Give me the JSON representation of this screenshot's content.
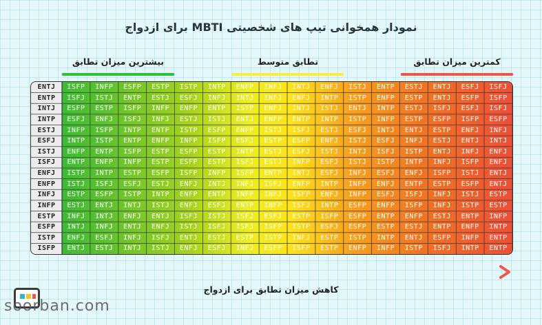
{
  "title": "نمودار همخوانی تیپ های شخصیتی MBTI برای ازدواج",
  "legend": {
    "most": "بیشترین میزان تطابق",
    "average": "تطابق متوسط",
    "least": "کمترین میزان تطابق"
  },
  "arrow_caption": "کاهش میزان تطابق برای ازدواج",
  "watermark": "soorban.com",
  "colors": {
    "high": "#27b53a",
    "mid": "#fde317",
    "low": "#ec4e38",
    "arrow_start": "#2ec036",
    "arrow_end": "#ef5748"
  },
  "chart_data": {
    "type": "table",
    "rows": [
      {
        "type": "ENTJ",
        "matches": [
          "ISFP",
          "INFP",
          "ESFP",
          "ESTP",
          "ISTP",
          "INTP",
          "ENFP",
          "INFJ",
          "INTJ",
          "ENFJ",
          "ISTJ",
          "ENTP",
          "ESTJ",
          "ENTJ",
          "ESFJ",
          "ISFJ"
        ]
      },
      {
        "type": "ENTP",
        "matches": [
          "ISFJ",
          "ISTJ",
          "ENTP",
          "ESTJ",
          "ESFJ",
          "INFJ",
          "INTJ",
          "INFJ",
          "ENFJ",
          "INTP",
          "ISTP",
          "ENFP",
          "ESTP",
          "ENTJ",
          "ESFP",
          "ISFP"
        ]
      },
      {
        "type": "INTJ",
        "matches": [
          "ESFP",
          "ESTP",
          "ISFP",
          "INFP",
          "ENFP",
          "ENTP",
          "ISTP",
          "ENFJ",
          "INTJ",
          "ISTJ",
          "ENTJ",
          "INTP",
          "ESTJ",
          "ISFJ",
          "ESFJ",
          "ISFJ"
        ]
      },
      {
        "type": "INTP",
        "matches": [
          "ESFJ",
          "ENFJ",
          "ISFJ",
          "INFJ",
          "ESTJ",
          "ISTJ",
          "ENTJ",
          "ENFP",
          "ENTP",
          "INTP",
          "ISTP",
          "INFP",
          "ESTP",
          "ESFP",
          "ISFP",
          "ESFP"
        ]
      },
      {
        "type": "ESTJ",
        "matches": [
          "INFP",
          "ISFP",
          "INTP",
          "ENTP",
          "ISTP",
          "ESFP",
          "ENFP",
          "ISTJ",
          "ISFJ",
          "ESTJ",
          "ESFJ",
          "INTJ",
          "ENTJ",
          "ESTP",
          "ENFJ",
          "INFJ"
        ]
      },
      {
        "type": "ESFJ",
        "matches": [
          "INTP",
          "ISTP",
          "ENTP",
          "ENFP",
          "INFP",
          "ISFP",
          "ESFJ",
          "ESTP",
          "ESFP",
          "ENFJ",
          "ISTJ",
          "ESFJ",
          "INFJ",
          "ESTJ",
          "ENTJ",
          "INTJ"
        ]
      },
      {
        "type": "ISTJ",
        "matches": [
          "ENFP",
          "ENTP",
          "ISFP",
          "ESTP",
          "ESFP",
          "ESTP",
          "INTP",
          "ESTJ",
          "ESFJ",
          "ISTJ",
          "INTJ",
          "ISFJ",
          "ISTP",
          "ENTJ",
          "INFJ",
          "ENFJ"
        ]
      },
      {
        "type": "ISFJ",
        "matches": [
          "ENTP",
          "ENFP",
          "INFP",
          "ESTP",
          "ESFP",
          "ESTP",
          "ISFJ",
          "ESTJ",
          "INFP",
          "ESFJ",
          "ISTJ",
          "ISTP",
          "INTP",
          "INFJ",
          "ISFP",
          "ENFJ"
        ]
      },
      {
        "type": "ENFJ",
        "matches": [
          "ISTP",
          "INTP",
          "ESTP",
          "ESFP",
          "ISFP",
          "INFP",
          "ISFP",
          "ENTP",
          "INTJ",
          "ESFJ",
          "INFJ",
          "ESFJ",
          "ENFJ",
          "ISFP",
          "ISTJ",
          "ENTJ"
        ]
      },
      {
        "type": "ENFP",
        "matches": [
          "ISTJ",
          "ISFJ",
          "ESFJ",
          "ESTJ",
          "ENFJ",
          "INTJ",
          "INFJ",
          "ISFJ",
          "ENFP",
          "INTP",
          "INFP",
          "ENFJ",
          "ENTP",
          "ESTP",
          "ESFP",
          "ENTJ"
        ]
      },
      {
        "type": "INFJ",
        "matches": [
          "ESTP",
          "ESFP",
          "ISTP",
          "INTP",
          "ENFP",
          "ENTP",
          "INFP",
          "INFJ",
          "ISFP",
          "ENFJ",
          "INFP",
          "ESFJ",
          "ISFJ",
          "INFJ",
          "ISTJ",
          "ESTP"
        ]
      },
      {
        "type": "INFP",
        "matches": [
          "ESTJ",
          "ENTJ",
          "INTJ",
          "ISTJ",
          "ENFJ",
          "ESFJ",
          "ENTP",
          "INFP",
          "ISFJ",
          "INTP",
          "ESFP",
          "ENFP",
          "ISFP",
          "INFJ",
          "ISTP",
          "ESTP"
        ]
      },
      {
        "type": "ESTP",
        "matches": [
          "INFJ",
          "INTJ",
          "ENFJ",
          "ENTJ",
          "ISFJ",
          "ISTJ",
          "ISFJ",
          "ESFJ",
          "ESTP",
          "ISFP",
          "ESFP",
          "ENTP",
          "ENFP",
          "ESTJ",
          "ENTP",
          "INFP"
        ]
      },
      {
        "type": "ESFP",
        "matches": [
          "INTJ",
          "INFJ",
          "ENTJ",
          "ENFJ",
          "ISTJ",
          "ISFJ",
          "ISFJ",
          "ISFP",
          "ISTP",
          "ESFJ",
          "ESFP",
          "ESTP",
          "ESTJ",
          "ENTP",
          "ENFP",
          "INTP"
        ]
      },
      {
        "type": "ISTP",
        "matches": [
          "ENFJ",
          "ESFJ",
          "INFJ",
          "ISFJ",
          "ENTJ",
          "ESTJ",
          "ESTP",
          "ISTP",
          "INFJ",
          "ESTP",
          "ISTP",
          "INTP",
          "ENTJ",
          "ESFP",
          "INFP",
          "ENTP"
        ]
      },
      {
        "type": "ISFP",
        "matches": [
          "ENTJ",
          "ESTJ",
          "INTJ",
          "ISTJ",
          "ENFJ",
          "ESFJ",
          "INFJ",
          "ESFP",
          "ISFP",
          "ESTP",
          "ENFP",
          "INFP",
          "ISTP",
          "ISFJ",
          "INTP",
          "ENTP"
        ]
      }
    ]
  }
}
